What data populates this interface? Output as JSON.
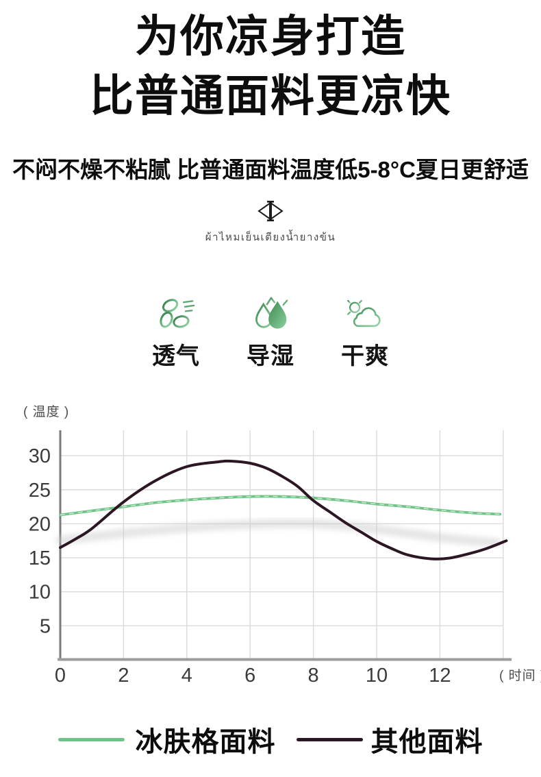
{
  "page": {
    "title_line1": "为你凉身打造",
    "title_line2": "比普通面料更凉快",
    "subtitle": "不闷不燥不粘腻 比普通面料温度低5-8°C夏日更舒适",
    "divider_icon": "diamond-icon",
    "thai_caption": "ผ้าไหมเย็นเตียงน้ำยางข้น"
  },
  "features": {
    "items": [
      {
        "label": "透气",
        "icon": "fan-icon"
      },
      {
        "label": "导湿",
        "icon": "water-drop-icon"
      },
      {
        "label": "干爽",
        "icon": "sun-cloud-icon"
      }
    ]
  },
  "colors": {
    "accent_green": "#6fc386",
    "line_dark": "#2d1623",
    "grid": "#dadada",
    "axis": "#9c9c9c"
  },
  "chart_data": {
    "type": "line",
    "title": "",
    "ylabel": "( 温度 )",
    "xlabel": "( 时间 )",
    "y_ticks": [
      30,
      25,
      20,
      15,
      10,
      5
    ],
    "x_ticks": [
      0,
      2,
      4,
      6,
      8,
      10,
      12
    ],
    "x_gridlines": [
      2,
      4,
      6,
      8,
      10,
      12,
      14
    ],
    "xlim": [
      0,
      14.2
    ],
    "ylim": [
      0,
      33
    ],
    "grid": true,
    "grid_color": "#dadada",
    "legend_position": "bottom",
    "series": [
      {
        "name": "冰肤格面料",
        "color": "#6fc386",
        "width": 3.8,
        "hatched": true,
        "points": [
          [
            0,
            21.3
          ],
          [
            1,
            21.9
          ],
          [
            2,
            22.5
          ],
          [
            3,
            23.1
          ],
          [
            4,
            23.5
          ],
          [
            5,
            23.8
          ],
          [
            6,
            24.0
          ],
          [
            7,
            24.0
          ],
          [
            8,
            23.8
          ],
          [
            9,
            23.4
          ],
          [
            10,
            22.9
          ],
          [
            11,
            22.5
          ],
          [
            12,
            22.0
          ],
          [
            13,
            21.6
          ],
          [
            13.9,
            21.4
          ]
        ]
      },
      {
        "name": "其他面料",
        "color": "#2d1623",
        "width": 4,
        "hatched": false,
        "points": [
          [
            0,
            16.5
          ],
          [
            0.5,
            17.8
          ],
          [
            1,
            19.3
          ],
          [
            2,
            23.2
          ],
          [
            3,
            26.3
          ],
          [
            4,
            28.4
          ],
          [
            5,
            29.1
          ],
          [
            5.4,
            29.2
          ],
          [
            6,
            28.9
          ],
          [
            6.5,
            28.2
          ],
          [
            7,
            27.0
          ],
          [
            7.5,
            25.5
          ],
          [
            8,
            23.4
          ],
          [
            8.5,
            21.8
          ],
          [
            9,
            20.2
          ],
          [
            9.5,
            18.8
          ],
          [
            10,
            17.4
          ],
          [
            10.5,
            16.3
          ],
          [
            11,
            15.4
          ],
          [
            11.7,
            14.85
          ],
          [
            12.3,
            14.95
          ],
          [
            13,
            15.7
          ],
          [
            13.5,
            16.4
          ],
          [
            14.1,
            17.5
          ]
        ]
      }
    ],
    "shadow": {
      "color": "#cbcbcb",
      "points": [
        [
          0,
          17.6
        ],
        [
          1,
          18.1
        ],
        [
          2,
          18.6
        ],
        [
          3,
          19.0
        ],
        [
          4,
          19.4
        ],
        [
          5,
          19.7
        ],
        [
          6,
          19.9
        ],
        [
          7,
          20.05
        ],
        [
          8,
          20.0
        ],
        [
          9,
          19.7
        ],
        [
          10,
          19.2
        ],
        [
          11,
          18.6
        ],
        [
          12,
          18.0
        ],
        [
          13,
          17.5
        ],
        [
          13.8,
          17.2
        ]
      ]
    }
  }
}
